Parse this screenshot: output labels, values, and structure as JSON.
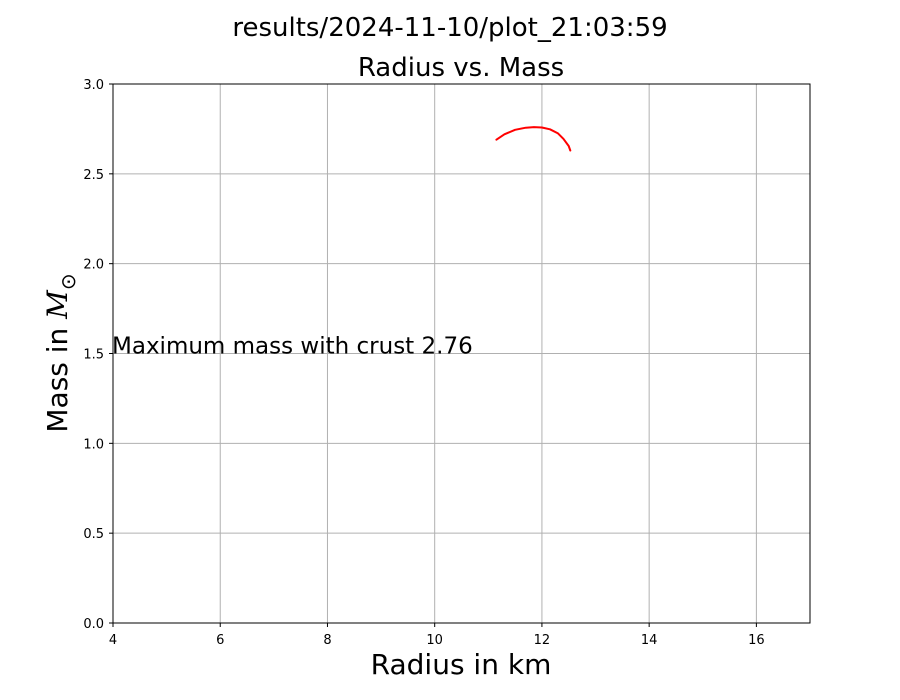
{
  "figure": {
    "suptitle": "results/2024-11-10/plot_21:03:59"
  },
  "chart_data": {
    "type": "line",
    "title": "Radius vs. Mass",
    "xlabel": "Radius in km",
    "ylabel_text": "Mass in ",
    "ylabel_symbol": "M",
    "ylabel_subscript": "⊙",
    "xlim": [
      4,
      17
    ],
    "ylim": [
      0,
      3
    ],
    "xticks": [
      4,
      6,
      8,
      10,
      12,
      14,
      16
    ],
    "xtick_labels": [
      "4",
      "6",
      "8",
      "10",
      "12",
      "14",
      "16"
    ],
    "yticks": [
      0,
      0.5,
      1,
      1.5,
      2,
      2.5,
      3
    ],
    "ytick_labels": [
      "0.0",
      "0.5",
      "1.0",
      "1.5",
      "2.0",
      "2.5",
      "3.0"
    ],
    "grid": true,
    "series": [
      {
        "color": "#ff0000",
        "x": [
          11.15,
          11.3,
          11.5,
          11.7,
          11.85,
          12.0,
          12.15,
          12.3,
          12.4,
          12.5,
          12.53
        ],
        "y": [
          2.69,
          2.72,
          2.745,
          2.757,
          2.76,
          2.758,
          2.748,
          2.725,
          2.695,
          2.655,
          2.63
        ]
      }
    ],
    "annotation": {
      "text": "Maximum mass with crust 2.76",
      "x": 4,
      "y": 1.5
    }
  }
}
